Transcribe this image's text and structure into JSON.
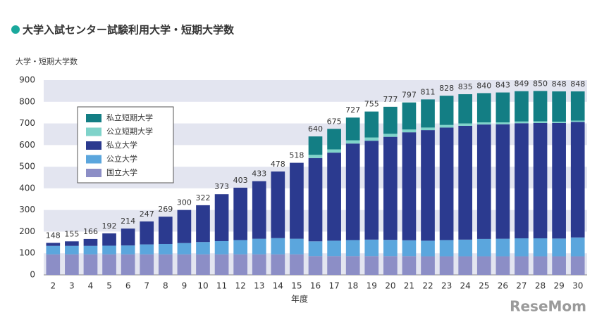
{
  "chart_data": {
    "type": "stacked-bar",
    "title": "大学入試センター試験利用大学・短期大学数",
    "y_axis_label": "大学・短期大学数",
    "x_axis_label": "年度",
    "watermark": "ReseMom",
    "categories": [
      "2",
      "3",
      "4",
      "5",
      "6",
      "7",
      "8",
      "9",
      "10",
      "11",
      "12",
      "13",
      "14",
      "15",
      "16",
      "17",
      "18",
      "19",
      "20",
      "21",
      "22",
      "23",
      "24",
      "25",
      "26",
      "27",
      "28",
      "29",
      "30"
    ],
    "totals": [
      148,
      155,
      166,
      192,
      214,
      247,
      269,
      300,
      322,
      373,
      403,
      433,
      478,
      518,
      640,
      675,
      727,
      755,
      777,
      797,
      811,
      828,
      835,
      840,
      843,
      849,
      850,
      848,
      848
    ],
    "series": [
      {
        "name": "私立短期大学",
        "color": "#137e84",
        "values": [
          0,
          0,
          0,
          0,
          0,
          0,
          0,
          0,
          0,
          0,
          0,
          0,
          0,
          0,
          85,
          95,
          105,
          120,
          125,
          125,
          130,
          135,
          135,
          135,
          138,
          140,
          140,
          140,
          135
        ]
      },
      {
        "name": "公立短期大学",
        "color": "#7fd3ca",
        "values": [
          0,
          0,
          0,
          0,
          0,
          0,
          0,
          0,
          0,
          0,
          0,
          0,
          0,
          0,
          15,
          15,
          15,
          15,
          14,
          13,
          12,
          12,
          11,
          10,
          9,
          8,
          8,
          6,
          6
        ]
      },
      {
        "name": "私立大学",
        "color": "#2b3a8f",
        "values": [
          14,
          21,
          32,
          57,
          78,
          106,
          126,
          153,
          170,
          217,
          242,
          266,
          308,
          351,
          385,
          407,
          446,
          457,
          476,
          499,
          511,
          520,
          526,
          529,
          529,
          532,
          533,
          534,
          534
        ]
      },
      {
        "name": "公立大学",
        "color": "#5ba6dd",
        "values": [
          39,
          39,
          39,
          40,
          41,
          46,
          48,
          52,
          57,
          61,
          66,
          72,
          75,
          72,
          68,
          71,
          74,
          76,
          75,
          73,
          72,
          75,
          77,
          80,
          81,
          83,
          83,
          82,
          87
        ]
      },
      {
        "name": "国立大学",
        "color": "#8c8ec6",
        "values": [
          95,
          95,
          95,
          95,
          95,
          95,
          95,
          95,
          95,
          95,
          95,
          95,
          95,
          95,
          87,
          87,
          87,
          87,
          87,
          87,
          86,
          86,
          86,
          86,
          86,
          86,
          86,
          86,
          86
        ]
      }
    ],
    "ylim": [
      0,
      900
    ],
    "yticks": [
      0,
      100,
      200,
      300,
      400,
      500,
      600,
      700,
      800,
      900
    ],
    "grid_bands": true
  }
}
